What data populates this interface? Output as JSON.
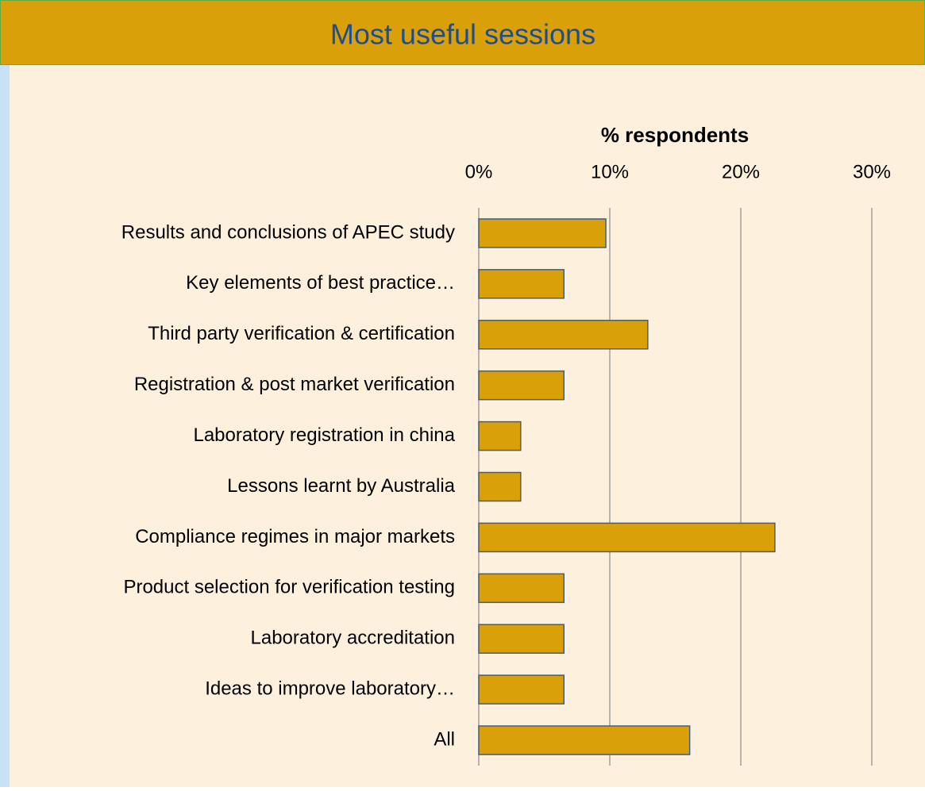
{
  "chart_data": {
    "type": "hbar",
    "title": "Most useful sessions",
    "xlabel": "% respondents",
    "categories": [
      "Results and conclusions of APEC study",
      "Key elements of best practice…",
      "Third party verification & certification",
      "Registration & post market verification",
      "Laboratory registration in china",
      "Lessons learnt by Australia",
      "Compliance regimes in major markets",
      "Product selection for verification testing",
      "Laboratory accreditation",
      "Ideas to improve laboratory…",
      "All"
    ],
    "values": [
      9.7,
      6.5,
      12.9,
      6.5,
      3.2,
      3.2,
      22.6,
      6.5,
      6.5,
      6.5,
      16.1
    ],
    "color": "#daa00a",
    "xlim": [
      0,
      30
    ],
    "xticks": [
      {
        "value": 0,
        "label": "0%"
      },
      {
        "value": 10,
        "label": "10%"
      },
      {
        "value": 20,
        "label": "20%"
      },
      {
        "value": 30,
        "label": "30%"
      }
    ],
    "grid": true
  }
}
